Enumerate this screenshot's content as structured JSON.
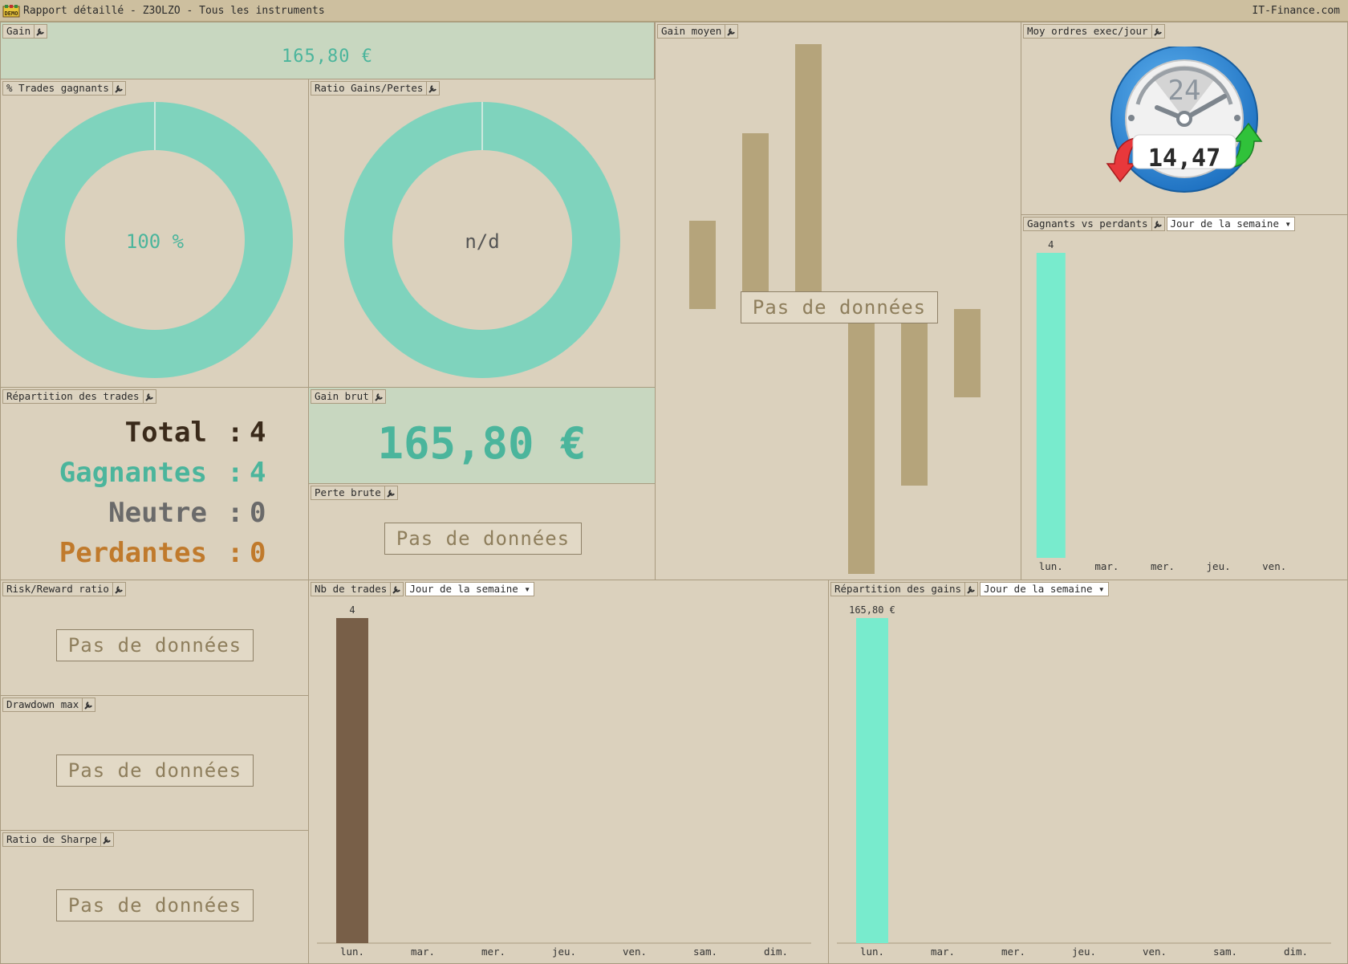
{
  "window": {
    "title": "Rapport détaillé - Z3OLZO - Tous les instruments",
    "brand": "IT-Finance.com",
    "logo_text": "DEMO"
  },
  "gain": {
    "title": "Gain",
    "value": "165,80 €"
  },
  "pct_gagnants": {
    "title": "% Trades gagnants",
    "value": "100 %",
    "fraction": 1.0
  },
  "ratio_gp": {
    "title": "Ratio Gains/Pertes",
    "value": "n/d"
  },
  "gain_moyen": {
    "title": "Gain moyen",
    "nodata": "Pas de données"
  },
  "moy_ordres": {
    "title": "Moy ordres exec/jour",
    "value": "14,47",
    "dial_label": "24"
  },
  "gvp": {
    "title": "Gagnants vs perdants",
    "dropdown": "Jour de la semaine",
    "categories": [
      "lun.",
      "mar.",
      "mer.",
      "jeu.",
      "ven."
    ],
    "labels": [
      "4",
      "",
      "",
      "",
      ""
    ]
  },
  "repartition": {
    "title": "Répartition des trades",
    "rows": [
      {
        "label": "Total",
        "sep": ":",
        "value": "4"
      },
      {
        "label": "Gagnantes",
        "sep": ":",
        "value": "4"
      },
      {
        "label": "Neutre",
        "sep": ":",
        "value": "0"
      },
      {
        "label": "Perdantes",
        "sep": ":",
        "value": "0"
      }
    ]
  },
  "gain_brut": {
    "title": "Gain brut",
    "value": "165,80 €"
  },
  "perte_brute": {
    "title": "Perte brute",
    "nodata": "Pas de données"
  },
  "risk_reward": {
    "title": "Risk/Reward ratio",
    "nodata": "Pas de données"
  },
  "drawdown": {
    "title": "Drawdown max",
    "nodata": "Pas de données"
  },
  "sharpe": {
    "title": "Ratio de Sharpe",
    "nodata": "Pas de données"
  },
  "nb_trades": {
    "title": "Nb de trades",
    "dropdown": "Jour de la semaine",
    "categories": [
      "lun.",
      "mar.",
      "mer.",
      "jeu.",
      "ven.",
      "sam.",
      "dim."
    ],
    "labels": [
      "4",
      "",
      "",
      "",
      "",
      "",
      ""
    ]
  },
  "rep_gains": {
    "title": "Répartition des gains",
    "dropdown": "Jour de la semaine",
    "categories": [
      "lun.",
      "mar.",
      "mer.",
      "jeu.",
      "ven.",
      "sam.",
      "dim."
    ],
    "labels": [
      "165,80 €",
      "",
      "",
      "",
      "",
      "",
      ""
    ]
  },
  "colors": {
    "teal": "#7fd3bd",
    "teal_text": "#4bb59c",
    "brown_bar": "#785f48",
    "mint_bar": "#78ebcd",
    "tan": "#b5a47b",
    "orange": "#c07a2c"
  },
  "chart_data": [
    {
      "type": "bar",
      "title": "Gagnants vs perdants",
      "categories": [
        "lun.",
        "mar.",
        "mer.",
        "jeu.",
        "ven."
      ],
      "values": [
        4,
        0,
        0,
        0,
        0
      ]
    },
    {
      "type": "bar",
      "title": "Nb de trades",
      "categories": [
        "lun.",
        "mar.",
        "mer.",
        "jeu.",
        "ven.",
        "sam.",
        "dim."
      ],
      "values": [
        4,
        0,
        0,
        0,
        0,
        0,
        0
      ]
    },
    {
      "type": "bar",
      "title": "Répartition des gains",
      "categories": [
        "lun.",
        "mar.",
        "mer.",
        "jeu.",
        "ven.",
        "sam.",
        "dim."
      ],
      "values": [
        165.8,
        0,
        0,
        0,
        0,
        0,
        0
      ]
    }
  ]
}
